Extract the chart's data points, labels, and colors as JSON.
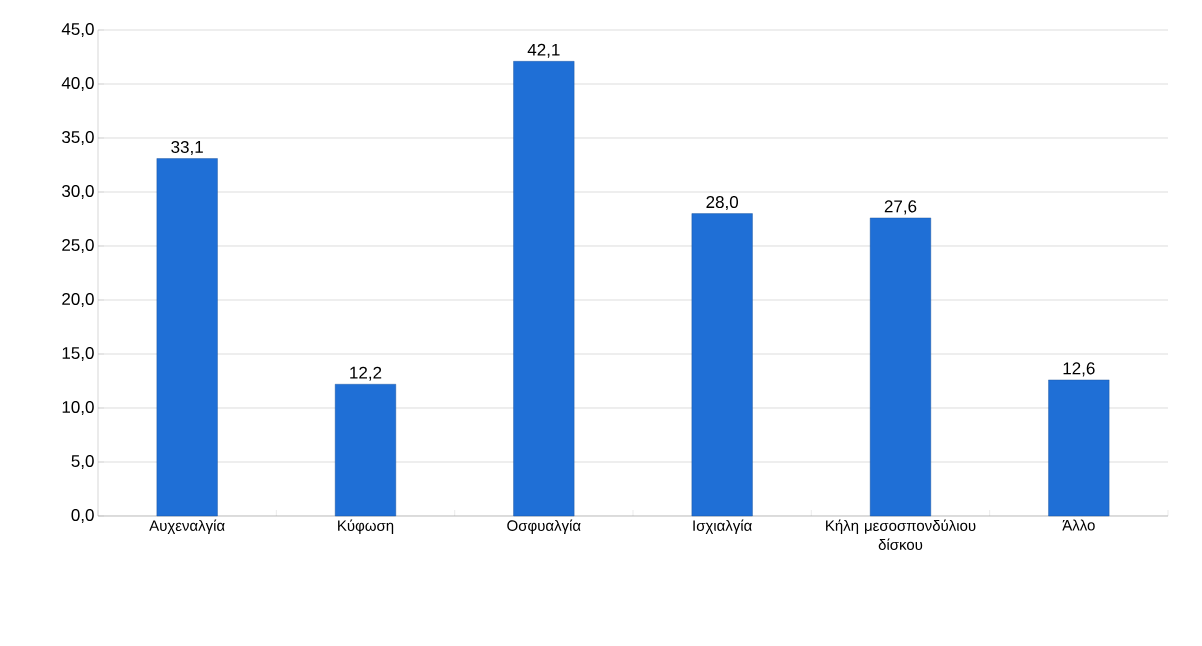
{
  "chart_data": {
    "type": "bar",
    "categories": [
      "Αυχεναλγία",
      "Κύφωση",
      "Οσφυαλγία",
      "Ισχιαλγία",
      "Κήλη μεσοσπονδύλιου δίσκου",
      "Άλλο"
    ],
    "values": [
      33.1,
      12.2,
      42.1,
      28.0,
      27.6,
      12.6
    ],
    "value_labels": [
      "33,1",
      "12,2",
      "42,1",
      "28,0",
      "27,6",
      "12,6"
    ],
    "color": "#1f6fd6",
    "ylim": [
      0,
      45
    ],
    "yticks": [
      {
        "value": 0,
        "label": "0,0"
      },
      {
        "value": 5,
        "label": "5,0"
      },
      {
        "value": 10,
        "label": "10,0"
      },
      {
        "value": 15,
        "label": "15,0"
      },
      {
        "value": 20,
        "label": "20,0"
      },
      {
        "value": 25,
        "label": "25,0"
      },
      {
        "value": 30,
        "label": "30,0"
      },
      {
        "value": 35,
        "label": "35,0"
      },
      {
        "value": 40,
        "label": "40,0"
      },
      {
        "value": 45,
        "label": "45,0"
      }
    ],
    "grid": "y"
  }
}
